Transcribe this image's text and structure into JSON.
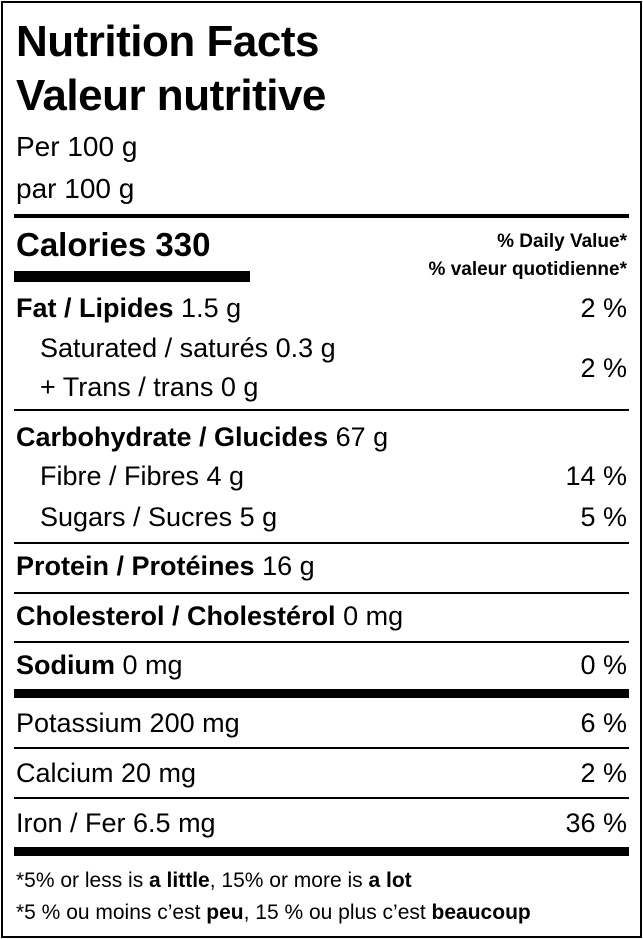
{
  "title_en": "Nutrition Facts",
  "title_fr": "Valeur nutritive",
  "serving_en": "Per 100 g",
  "serving_fr": "par 100 g",
  "calories": {
    "label": "Calories",
    "value": "330"
  },
  "daily_value_en": "% Daily Value*",
  "daily_value_fr": "% valeur quotidienne*",
  "rows": {
    "fat": {
      "label": "Fat / Lipides",
      "amount": "1.5 g",
      "dv": "2 %"
    },
    "saturated": {
      "label": "Saturated / saturés 0.3 g"
    },
    "trans": {
      "label": "+ Trans / trans 0 g",
      "dv": "2 %"
    },
    "carb": {
      "label": "Carbohydrate / Glucides",
      "amount": "67 g"
    },
    "fibre": {
      "label": "Fibre / Fibres 4 g",
      "dv": "14 %"
    },
    "sugars": {
      "label": "Sugars / Sucres 5 g",
      "dv": "5 %"
    },
    "protein": {
      "label": "Protein / Protéines",
      "amount": "16 g"
    },
    "cholesterol": {
      "label": "Cholesterol / Cholestérol",
      "amount": "0 mg"
    },
    "sodium": {
      "label": "Sodium",
      "amount": "0 mg",
      "dv": "0 %"
    },
    "potassium": {
      "label": "Potassium 200 mg",
      "dv": "6 %"
    },
    "calcium": {
      "label": "Calcium 20 mg",
      "dv": "2 %"
    },
    "iron": {
      "label": "Iron / Fer 6.5 mg",
      "dv": "36 %"
    }
  },
  "footnote_en": {
    "p1": "*5% or less is ",
    "b1": "a little",
    "p2": ", 15% or more is ",
    "b2": "a lot"
  },
  "footnote_fr": {
    "p1": "*5 % ou moins c’est ",
    "b1": "peu",
    "p2": ", 15 % ou plus c’est ",
    "b2": "beaucoup"
  }
}
